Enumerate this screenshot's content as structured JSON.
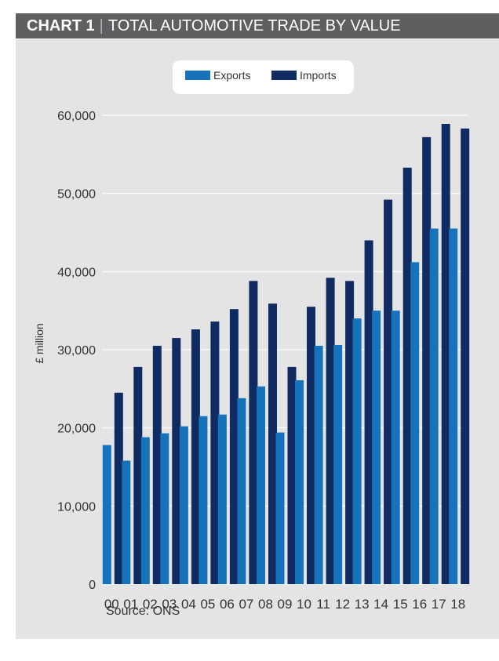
{
  "header": {
    "chart_number": "CHART 1",
    "separator": "|",
    "title": "TOTAL AUTOMOTIVE TRADE BY VALUE"
  },
  "source": "Source: ONS",
  "colors": {
    "exports": "#1672bb",
    "imports": "#0f2b62",
    "background": "#e4e4e5",
    "header": "#5f5f61",
    "gridline": "#ffffff"
  },
  "chart_data": {
    "type": "bar",
    "title": "TOTAL AUTOMOTIVE TRADE BY VALUE",
    "ylabel": "£ million",
    "xlabel": "",
    "ylim": [
      0,
      60000
    ],
    "yticks": [
      0,
      10000,
      20000,
      30000,
      40000,
      50000,
      60000
    ],
    "ytick_labels": [
      "0",
      "10,000",
      "20,000",
      "30,000",
      "40,000",
      "50,000",
      "60,000"
    ],
    "grid": true,
    "legend_position": "top-center",
    "categories": [
      "00",
      "01",
      "02",
      "03",
      "04",
      "05",
      "06",
      "07",
      "08",
      "09",
      "10",
      "11",
      "12",
      "13",
      "14",
      "15",
      "16",
      "17",
      "18"
    ],
    "series": [
      {
        "name": "Exports",
        "color": "#1672bb",
        "values": [
          17800,
          15800,
          18800,
          19300,
          20200,
          21500,
          21700,
          23800,
          25300,
          19400,
          26100,
          30500,
          30600,
          34000,
          35000,
          35000,
          41200,
          45500,
          45500
        ]
      },
      {
        "name": "Imports",
        "color": "#0f2b62",
        "values": [
          24500,
          27800,
          30500,
          31500,
          32600,
          33600,
          35200,
          38800,
          35900,
          27800,
          35500,
          39200,
          38800,
          44000,
          49200,
          53300,
          57200,
          58900,
          58300
        ]
      }
    ]
  }
}
